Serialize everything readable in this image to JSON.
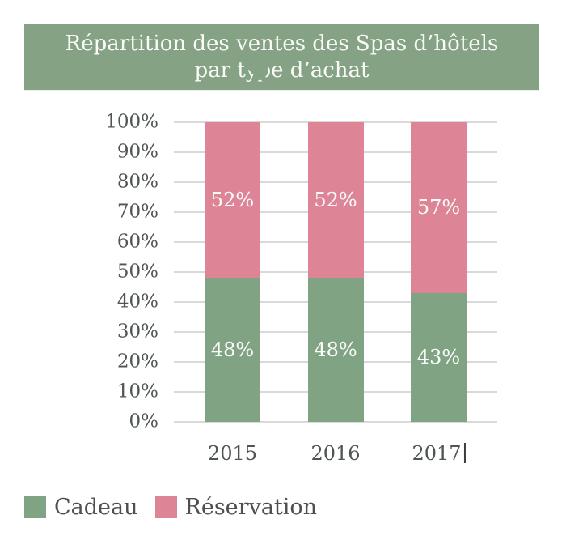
{
  "title": {
    "line1": "Répartition des ventes des Spas d’hôtels",
    "line2": "par type d’achat"
  },
  "colors": {
    "banner_green": "#85a284",
    "cadeau_green": "#80a383",
    "reservation_pink": "#dd8496",
    "gridline_gray": "#d9d9d9",
    "axis_text": "#4f554f",
    "value_label_white": "#fbfbf9"
  },
  "chart_data": {
    "type": "bar",
    "stacked": true,
    "title": "Répartition des ventes des Spas d’hôtels par type d’achat",
    "categories": [
      "2015",
      "2016",
      "2017"
    ],
    "series": [
      {
        "name": "Cadeau",
        "color": "#80a383",
        "values": [
          48,
          48,
          43
        ]
      },
      {
        "name": "Réservation",
        "color": "#dd8496",
        "values": [
          52,
          52,
          57
        ]
      }
    ],
    "value_label_suffix": "%",
    "y_ticks": [
      "100%",
      "90%",
      "80%",
      "70%",
      "60%",
      "50%",
      "40%",
      "30%",
      "20%",
      "10%",
      "0%"
    ],
    "ylim": [
      0,
      100
    ],
    "grid": true,
    "legend_position": "bottom-left",
    "value_labels_position": "inside-center"
  },
  "x_axis_caret_after": "2017"
}
